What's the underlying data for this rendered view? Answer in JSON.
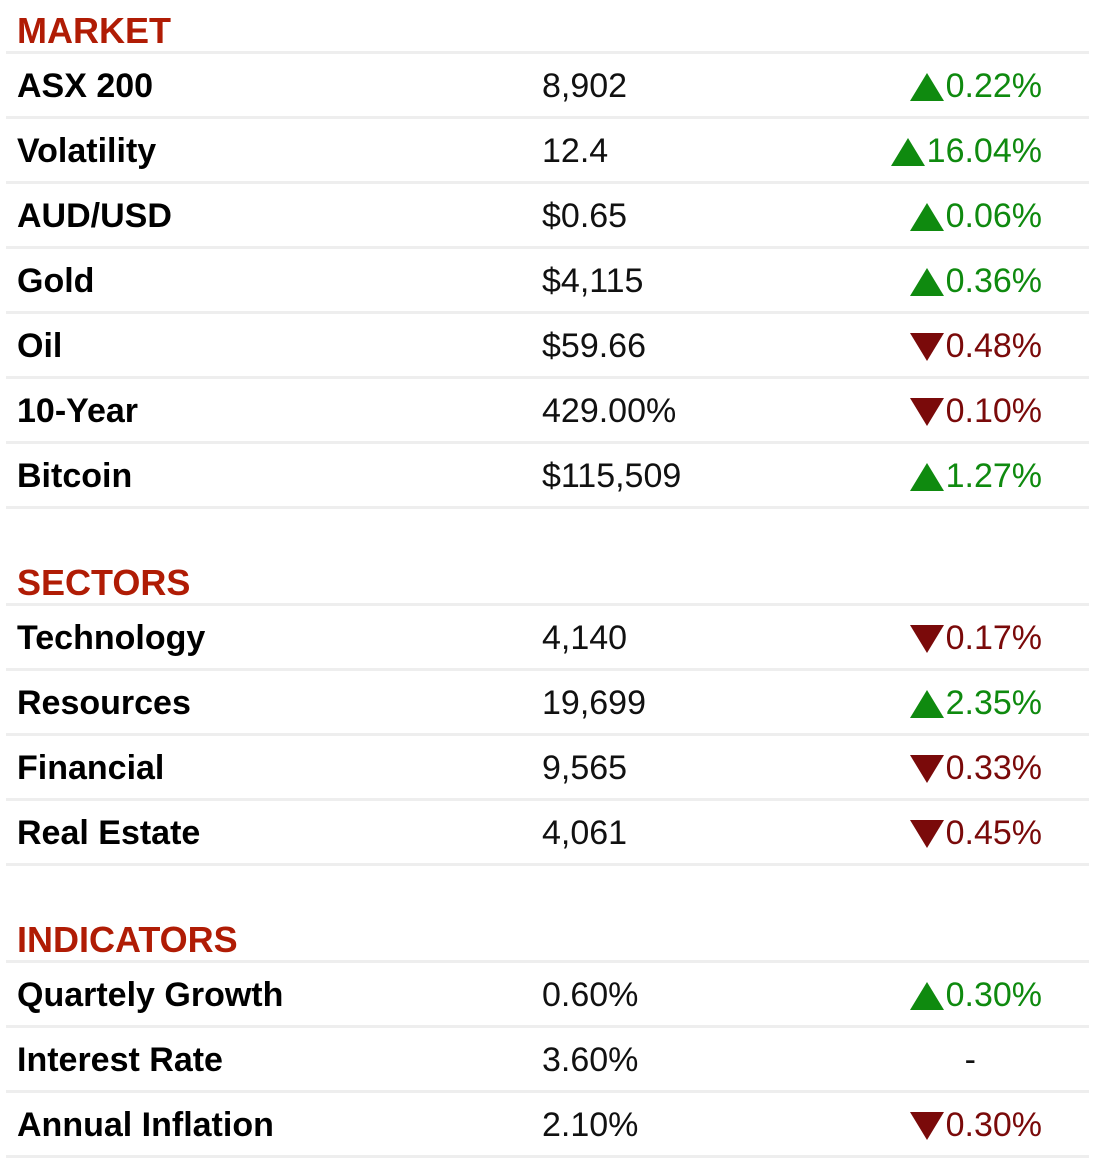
{
  "sections": [
    {
      "title": "MARKET",
      "rows": [
        {
          "name": "ASX 200",
          "value": "8,902",
          "direction": "up",
          "change": "0.22%"
        },
        {
          "name": "Volatility",
          "value": "12.4",
          "direction": "up",
          "change": "16.04%"
        },
        {
          "name": "AUD/USD",
          "value": "$0.65",
          "direction": "up",
          "change": "0.06%"
        },
        {
          "name": "Gold",
          "value": "$4,115",
          "direction": "up",
          "change": "0.36%"
        },
        {
          "name": "Oil",
          "value": "$59.66",
          "direction": "down",
          "change": "0.48%"
        },
        {
          "name": "10-Year",
          "value": "429.00%",
          "direction": "down",
          "change": "0.10%"
        },
        {
          "name": "Bitcoin",
          "value": "$115,509",
          "direction": "up",
          "change": "1.27%"
        }
      ]
    },
    {
      "title": "SECTORS",
      "rows": [
        {
          "name": "Technology",
          "value": "4,140",
          "direction": "down",
          "change": "0.17%"
        },
        {
          "name": "Resources",
          "value": "19,699",
          "direction": "up",
          "change": "2.35%"
        },
        {
          "name": "Financial",
          "value": "9,565",
          "direction": "down",
          "change": "0.33%"
        },
        {
          "name": "Real Estate",
          "value": "4,061",
          "direction": "down",
          "change": "0.45%"
        }
      ]
    },
    {
      "title": "INDICATORS",
      "rows": [
        {
          "name": "Quartely Growth",
          "value": "0.60%",
          "direction": "up",
          "change": "0.30%"
        },
        {
          "name": "Interest Rate",
          "value": "3.60%",
          "direction": "flat",
          "change": "-"
        },
        {
          "name": "Annual Inflation",
          "value": "2.10%",
          "direction": "down",
          "change": "0.30%"
        }
      ]
    }
  ],
  "colors": {
    "heading": "#b01c05",
    "up": "#0f8a0f",
    "down": "#7a0a0a",
    "divider": "#eeeeee"
  },
  "icons": {
    "up": "triangle-up-icon",
    "down": "triangle-down-icon"
  }
}
